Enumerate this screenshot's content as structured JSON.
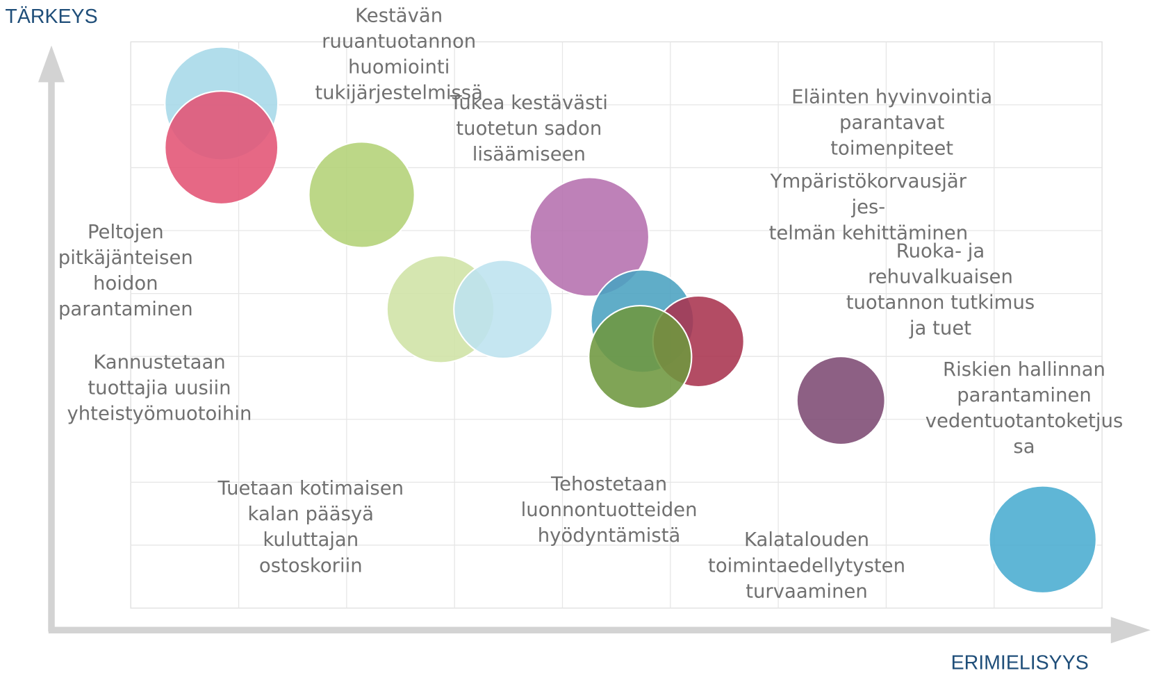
{
  "chart_data": {
    "type": "bubble",
    "x_label": "ERIMIELISYYS",
    "y_label": "TÄRKEYS",
    "xlim": [
      0,
      9
    ],
    "ylim": [
      0,
      9
    ],
    "grid": true,
    "series": [
      {
        "color": "#a6d8e8",
        "x": [
          0.84
        ],
        "values": [
          8.02
        ],
        "sizes": [
          7.7
        ]
      },
      {
        "color": "#e25374",
        "x": [
          0.84
        ],
        "values": [
          7.32
        ],
        "sizes": [
          7.7
        ]
      },
      {
        "color": "#b3d176",
        "x": [
          2.14
        ],
        "values": [
          6.57
        ],
        "sizes": [
          7.2
        ]
      },
      {
        "color": "#cfe3a5",
        "x": [
          2.87
        ],
        "values": [
          4.75
        ],
        "sizes": [
          7.3
        ]
      },
      {
        "color": "#bde3ef",
        "x": [
          3.45
        ],
        "values": [
          4.75
        ],
        "sizes": [
          6.7
        ]
      },
      {
        "color": "#b56fae",
        "x": [
          4.25
        ],
        "values": [
          5.9
        ],
        "sizes": [
          8.1
        ]
      },
      {
        "color": "#4aa2c0",
        "x": [
          4.74
        ],
        "values": [
          4.56
        ],
        "sizes": [
          7.0
        ]
      },
      {
        "color": "#a8334f",
        "x": [
          5.26
        ],
        "values": [
          4.24
        ],
        "sizes": [
          6.2
        ]
      },
      {
        "color": "#6e973f",
        "x": [
          4.72
        ],
        "values": [
          3.99
        ],
        "sizes": [
          7.0
        ]
      },
      {
        "color": "#7d4a73",
        "x": [
          6.58
        ],
        "values": [
          3.3
        ],
        "sizes": [
          6.0
        ]
      },
      {
        "color": "#49acd0",
        "x": [
          8.45
        ],
        "values": [
          1.09
        ],
        "sizes": [
          7.3
        ]
      }
    ],
    "annotations": [
      [
        "Kestävän",
        "ruuantuotannon",
        "huomiointi",
        "tukijärjestelmissä"
      ],
      [
        "Tukea kestävästi",
        "tuotetun sadon",
        "lisäämiseen"
      ],
      [
        "Eläinten hyvinvointia",
        "parantavat",
        "toimenpiteet"
      ],
      [
        "Ympäristökorvausjär",
        "jes-",
        "telmän kehittäminen"
      ],
      [
        "Ruoka- ja",
        "rehuvalkuaisen",
        "tuotannon tutkimus",
        "ja tuet"
      ],
      [
        "Peltojen",
        "pitkäjänteisen",
        "hoidon",
        "parantaminen"
      ],
      [
        "Kannustetaan",
        "tuottajia uusiin",
        "yhteistyömuotoihin"
      ],
      [
        "Riskien hallinnan",
        "parantaminen",
        "vedentuotantoketjus",
        "sa"
      ],
      [
        "Tuetaan kotimaisen",
        "kalan pääsyä",
        "kuluttajan",
        "ostoskoriin"
      ],
      [
        "Tehostetaan",
        "luonnontuotteiden",
        "hyödyntämistä"
      ],
      [
        "Kalatalouden",
        "toimintaedellytysten",
        "turvaaminen"
      ]
    ]
  }
}
